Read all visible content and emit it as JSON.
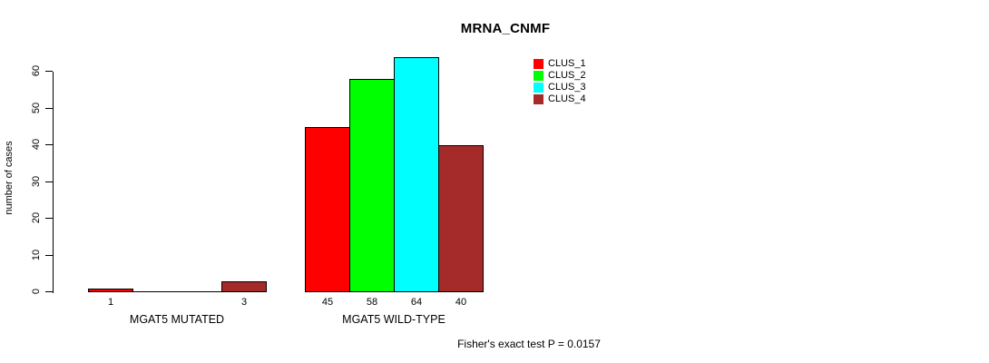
{
  "chart_data": {
    "type": "bar",
    "title": "MRNA_CNMF",
    "xlabel": "",
    "ylabel": "number of cases",
    "ylim": [
      0,
      60
    ],
    "yticks": [
      0,
      10,
      20,
      30,
      40,
      50,
      60
    ],
    "grid": false,
    "legend_position": "top-right",
    "categories": [
      "MGAT5 MUTATED",
      "MGAT5 WILD-TYPE"
    ],
    "series": [
      {
        "name": "CLUS_1",
        "color": "#ff0000",
        "values": [
          1,
          45
        ]
      },
      {
        "name": "CLUS_2",
        "color": "#00ff00",
        "values": [
          0,
          58
        ]
      },
      {
        "name": "CLUS_3",
        "color": "#00ffff",
        "values": [
          0,
          64
        ]
      },
      {
        "name": "CLUS_4",
        "color": "#a52a2a",
        "values": [
          3,
          40
        ]
      }
    ],
    "value_labels": [
      [
        "1",
        "",
        "",
        "3"
      ],
      [
        "45",
        "58",
        "64",
        "40"
      ]
    ],
    "annotation": "Fisher's exact test P = 0.0157",
    "axis_color": "#000000",
    "bar_border_color": "#000000",
    "background_color": "#ffffff"
  }
}
